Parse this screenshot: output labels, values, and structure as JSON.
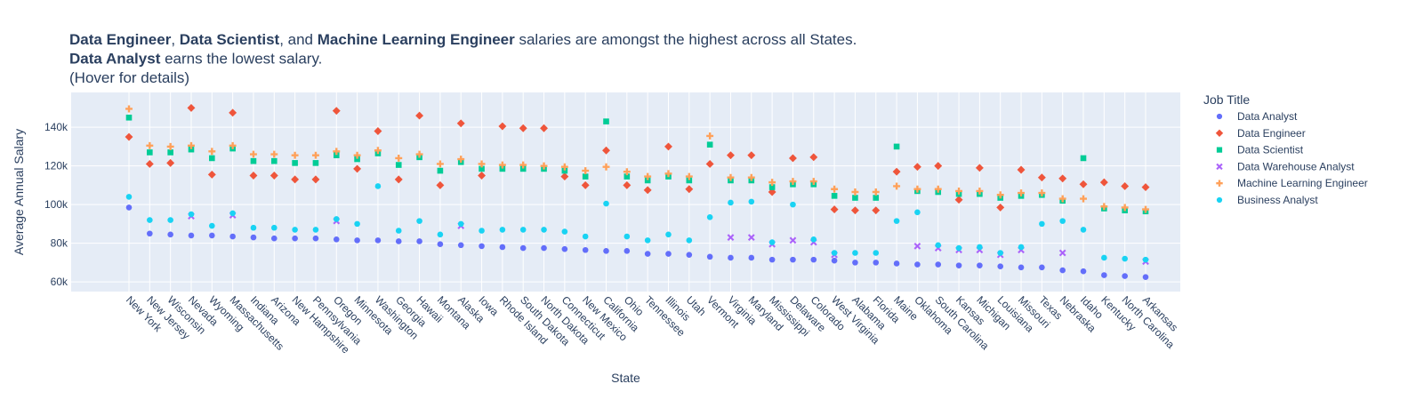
{
  "chart_data": {
    "type": "scatter",
    "title_lines": [
      [
        {
          "text": "Data Engineer",
          "bold": true
        },
        {
          "text": ", ",
          "bold": false
        },
        {
          "text": "Data Scientist",
          "bold": true
        },
        {
          "text": ", and ",
          "bold": false
        },
        {
          "text": "Machine Learning Engineer",
          "bold": true
        },
        {
          "text": " salaries are amongst the highest across all States.",
          "bold": false
        }
      ],
      [
        {
          "text": "Data Analyst",
          "bold": true
        },
        {
          "text": " earns the lowest salary.",
          "bold": false
        }
      ],
      [
        {
          "text": "(Hover for details)",
          "bold": false
        }
      ]
    ],
    "xlabel": "State",
    "ylabel": "Average Annual Salary",
    "ylim": [
      55000,
      158000
    ],
    "yticks": [
      60000,
      80000,
      100000,
      120000,
      140000
    ],
    "ytick_labels": [
      "60k",
      "80k",
      "100k",
      "120k",
      "140k"
    ],
    "legend_title": "Job Title",
    "legend_position": "right",
    "grid": true,
    "colors": {
      "plot_bg": "#e5ecf6",
      "grid": "#ffffff",
      "text": "#2a3f5f"
    },
    "categories": [
      "New York",
      "New Jersey",
      "Wisconsin",
      "Nevada",
      "Wyoming",
      "Massachusetts",
      "Indiana",
      "Arizona",
      "New Hampshire",
      "Pennsylvania",
      "Oregon",
      "Minnesota",
      "Washington",
      "Georgia",
      "Hawaii",
      "Montana",
      "Alaska",
      "Iowa",
      "Rhode Island",
      "South Dakota",
      "North Dakota",
      "Connecticut",
      "New Mexico",
      "California",
      "Ohio",
      "Tennessee",
      "Illinois",
      "Utah",
      "Vermont",
      "Virginia",
      "Maryland",
      "Mississippi",
      "Delaware",
      "Colorado",
      "West Virginia",
      "Alabama",
      "Florida",
      "Maine",
      "Oklahoma",
      "South Carolina",
      "Kansas",
      "Michigan",
      "Louisiana",
      "Missouri",
      "Texas",
      "Nebraska",
      "Idaho",
      "Kentucky",
      "North Carolina",
      "Arkansas"
    ],
    "series": [
      {
        "name": "Data Analyst",
        "color": "#636efa",
        "marker": "circle",
        "values": [
          98500,
          85000,
          84500,
          84000,
          84000,
          83500,
          83000,
          82500,
          82500,
          82500,
          82000,
          81500,
          81500,
          81000,
          81000,
          79500,
          79000,
          78500,
          78000,
          77500,
          77500,
          77000,
          76500,
          76000,
          76000,
          74500,
          74500,
          74000,
          73000,
          72500,
          72500,
          71500,
          71500,
          71500,
          71000,
          70000,
          70000,
          69500,
          69000,
          69000,
          68500,
          68500,
          68000,
          67500,
          67500,
          66000,
          65500,
          63500,
          63000,
          62500
        ]
      },
      {
        "name": "Data Engineer",
        "color": "#ef553b",
        "marker": "diamond",
        "values": [
          135000,
          121000,
          121500,
          150000,
          115500,
          147500,
          115000,
          115000,
          113000,
          113000,
          148500,
          118500,
          138000,
          113000,
          146000,
          110000,
          142000,
          115000,
          140500,
          139500,
          139500,
          114500,
          110000,
          128000,
          110000,
          107500,
          130000,
          108000,
          121000,
          125500,
          125500,
          106500,
          124000,
          124500,
          97500,
          97000,
          97000,
          117000,
          119500,
          120000,
          102500,
          119000,
          98500,
          118000,
          114000,
          113500,
          110500,
          111500,
          109500,
          109000
        ]
      },
      {
        "name": "Data Scientist",
        "color": "#00cc96",
        "marker": "square",
        "values": [
          145000,
          127000,
          127000,
          128500,
          124000,
          129000,
          122500,
          122500,
          121500,
          121500,
          125500,
          123500,
          126500,
          120500,
          124500,
          117500,
          122000,
          118500,
          118500,
          118500,
          118500,
          117500,
          114500,
          143000,
          114500,
          112500,
          114500,
          112500,
          131000,
          112500,
          112500,
          109000,
          110500,
          110500,
          104500,
          103500,
          103500,
          130000,
          107000,
          106500,
          105500,
          105500,
          103500,
          104500,
          105000,
          102000,
          124000,
          98000,
          97000,
          96500
        ]
      },
      {
        "name": "Data Warehouse Analyst",
        "color": "#ab63fa",
        "marker": "x",
        "values": [
          null,
          null,
          null,
          94000,
          null,
          94500,
          null,
          null,
          null,
          null,
          91500,
          null,
          null,
          null,
          null,
          null,
          89000,
          null,
          null,
          null,
          null,
          null,
          null,
          null,
          null,
          null,
          null,
          null,
          null,
          83000,
          83000,
          79500,
          81500,
          80500,
          74000,
          null,
          null,
          null,
          78500,
          77500,
          76500,
          76500,
          74000,
          76500,
          null,
          75000,
          null,
          null,
          null,
          70500
        ]
      },
      {
        "name": "Machine Learning Engineer",
        "color": "#ffa15a",
        "marker": "cross",
        "values": [
          149500,
          130500,
          130000,
          130500,
          127500,
          130500,
          126000,
          126000,
          125500,
          125500,
          127500,
          125500,
          128000,
          124000,
          126000,
          121000,
          123500,
          121000,
          120500,
          120500,
          120000,
          119500,
          117500,
          119500,
          117000,
          114500,
          116000,
          114500,
          135500,
          114000,
          114000,
          111500,
          112000,
          112000,
          108000,
          106500,
          106500,
          109500,
          108000,
          108000,
          107000,
          107000,
          105000,
          106000,
          106000,
          103000,
          103000,
          99000,
          98500,
          97500
        ]
      },
      {
        "name": "Business Analyst",
        "color": "#19d3f3",
        "marker": "circle",
        "values": [
          104000,
          92000,
          92000,
          95000,
          89000,
          95500,
          88000,
          88000,
          87000,
          87000,
          92500,
          90000,
          109500,
          86500,
          91500,
          84500,
          90000,
          86500,
          87000,
          87000,
          87000,
          86000,
          83500,
          100500,
          83500,
          81500,
          84500,
          81500,
          93500,
          101000,
          101500,
          80500,
          100000,
          82000,
          75000,
          75000,
          75000,
          91500,
          96000,
          79000,
          77500,
          78000,
          75000,
          78000,
          90000,
          91500,
          87000,
          72500,
          72000,
          71500
        ]
      }
    ]
  }
}
